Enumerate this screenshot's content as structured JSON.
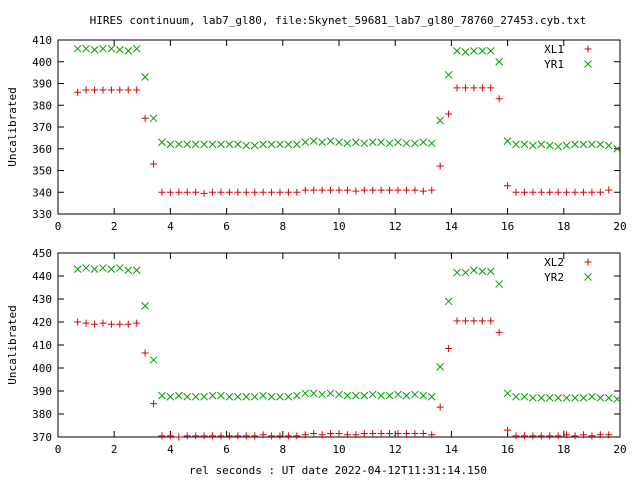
{
  "title": "HIRES continuum, lab7_gl80, file:Skynet_59681_lab7_gl80_78760_27453.cyb.txt",
  "xlabel": "rel seconds : UT date 2022-04-12T11:31:14.150",
  "colors": {
    "red": "#e00000",
    "green": "#00a000",
    "axis": "#000000"
  },
  "chart_data": [
    {
      "type": "scatter",
      "title": "",
      "xlabel": "",
      "ylabel": "Uncalibrated",
      "xlim": [
        0,
        20
      ],
      "ylim": [
        330,
        410
      ],
      "xticks": [
        0,
        2,
        4,
        6,
        8,
        10,
        12,
        14,
        16,
        18,
        20
      ],
      "yticks": [
        330,
        340,
        350,
        360,
        370,
        380,
        390,
        400,
        410
      ],
      "legend_position": "top-right",
      "grid": false,
      "series": [
        {
          "name": "XL1",
          "marker": "plus",
          "color": "#e00000",
          "points": [
            [
              0.7,
              386
            ],
            [
              1.0,
              387
            ],
            [
              1.3,
              387
            ],
            [
              1.6,
              387
            ],
            [
              1.9,
              387
            ],
            [
              2.2,
              387
            ],
            [
              2.5,
              387
            ],
            [
              2.8,
              387
            ],
            [
              3.1,
              374
            ],
            [
              3.4,
              353
            ],
            [
              3.7,
              340
            ],
            [
              4.0,
              340
            ],
            [
              4.3,
              340
            ],
            [
              4.6,
              340
            ],
            [
              4.9,
              340
            ],
            [
              5.2,
              339.5
            ],
            [
              5.5,
              340
            ],
            [
              5.8,
              340
            ],
            [
              6.1,
              340
            ],
            [
              6.4,
              340
            ],
            [
              6.7,
              340
            ],
            [
              7.0,
              340
            ],
            [
              7.3,
              340
            ],
            [
              7.6,
              340
            ],
            [
              7.9,
              340
            ],
            [
              8.2,
              340
            ],
            [
              8.5,
              340
            ],
            [
              8.8,
              341
            ],
            [
              9.1,
              341
            ],
            [
              9.4,
              341
            ],
            [
              9.7,
              341
            ],
            [
              10.0,
              341
            ],
            [
              10.3,
              341
            ],
            [
              10.6,
              340.5
            ],
            [
              10.9,
              341
            ],
            [
              11.2,
              341
            ],
            [
              11.5,
              341
            ],
            [
              11.8,
              341
            ],
            [
              12.1,
              341
            ],
            [
              12.4,
              341
            ],
            [
              12.7,
              341
            ],
            [
              13.0,
              340.5
            ],
            [
              13.3,
              341
            ],
            [
              13.6,
              352
            ],
            [
              13.9,
              376
            ],
            [
              14.2,
              388
            ],
            [
              14.5,
              388
            ],
            [
              14.8,
              388
            ],
            [
              15.1,
              388
            ],
            [
              15.4,
              388
            ],
            [
              15.7,
              383
            ],
            [
              16.0,
              343
            ],
            [
              16.3,
              340
            ],
            [
              16.6,
              340
            ],
            [
              16.9,
              340
            ],
            [
              17.2,
              340
            ],
            [
              17.5,
              340
            ],
            [
              17.8,
              340
            ],
            [
              18.1,
              340
            ],
            [
              18.4,
              340
            ],
            [
              18.7,
              340
            ],
            [
              19.0,
              340
            ],
            [
              19.3,
              340
            ],
            [
              19.6,
              341
            ]
          ]
        },
        {
          "name": "YR1",
          "marker": "cross",
          "color": "#00a000",
          "points": [
            [
              0.7,
              406
            ],
            [
              1.0,
              406
            ],
            [
              1.3,
              405.5
            ],
            [
              1.6,
              406
            ],
            [
              1.9,
              406
            ],
            [
              2.2,
              405.5
            ],
            [
              2.5,
              405
            ],
            [
              2.8,
              406
            ],
            [
              3.1,
              393
            ],
            [
              3.4,
              374
            ],
            [
              3.7,
              363
            ],
            [
              4.0,
              362
            ],
            [
              4.3,
              362
            ],
            [
              4.6,
              362
            ],
            [
              4.9,
              362
            ],
            [
              5.2,
              362
            ],
            [
              5.5,
              362
            ],
            [
              5.8,
              362
            ],
            [
              6.1,
              362
            ],
            [
              6.4,
              362
            ],
            [
              6.7,
              361.5
            ],
            [
              7.0,
              361.5
            ],
            [
              7.3,
              362
            ],
            [
              7.6,
              362
            ],
            [
              7.9,
              362
            ],
            [
              8.2,
              362
            ],
            [
              8.5,
              362
            ],
            [
              8.8,
              363
            ],
            [
              9.1,
              363.5
            ],
            [
              9.4,
              363
            ],
            [
              9.7,
              363.5
            ],
            [
              10.0,
              363
            ],
            [
              10.3,
              362.5
            ],
            [
              10.6,
              363
            ],
            [
              10.9,
              362.5
            ],
            [
              11.2,
              363
            ],
            [
              11.5,
              363
            ],
            [
              11.8,
              362.5
            ],
            [
              12.1,
              363
            ],
            [
              12.4,
              362.5
            ],
            [
              12.7,
              362.5
            ],
            [
              13.0,
              363
            ],
            [
              13.3,
              362.5
            ],
            [
              13.6,
              373
            ],
            [
              13.9,
              394
            ],
            [
              14.2,
              405
            ],
            [
              14.5,
              404.5
            ],
            [
              14.8,
              405
            ],
            [
              15.1,
              405
            ],
            [
              15.4,
              405
            ],
            [
              15.7,
              400
            ],
            [
              16.0,
              363.5
            ],
            [
              16.3,
              362
            ],
            [
              16.6,
              362
            ],
            [
              16.9,
              361.5
            ],
            [
              17.2,
              362
            ],
            [
              17.5,
              361.5
            ],
            [
              17.8,
              361
            ],
            [
              18.1,
              361.5
            ],
            [
              18.4,
              362
            ],
            [
              18.7,
              362
            ],
            [
              19.0,
              362
            ],
            [
              19.3,
              362
            ],
            [
              19.6,
              361.5
            ],
            [
              19.9,
              360
            ]
          ]
        }
      ]
    },
    {
      "type": "scatter",
      "title": "",
      "xlabel": "rel seconds : UT date 2022-04-12T11:31:14.150",
      "ylabel": "Uncalibrated",
      "xlim": [
        0,
        20
      ],
      "ylim": [
        370,
        450
      ],
      "xticks": [
        0,
        2,
        4,
        6,
        8,
        10,
        12,
        14,
        16,
        18,
        20
      ],
      "yticks": [
        370,
        380,
        390,
        400,
        410,
        420,
        430,
        440,
        450
      ],
      "legend_position": "top-right",
      "grid": false,
      "series": [
        {
          "name": "XL2",
          "marker": "plus",
          "color": "#e00000",
          "points": [
            [
              0.7,
              420
            ],
            [
              1.0,
              419.5
            ],
            [
              1.3,
              419
            ],
            [
              1.6,
              419.5
            ],
            [
              1.9,
              419
            ],
            [
              2.2,
              419
            ],
            [
              2.5,
              419
            ],
            [
              2.8,
              419.5
            ],
            [
              3.1,
              406.5
            ],
            [
              3.4,
              384.5
            ],
            [
              3.7,
              370.5
            ],
            [
              4.0,
              370.5
            ],
            [
              4.3,
              370
            ],
            [
              4.6,
              370.5
            ],
            [
              4.9,
              370.5
            ],
            [
              5.2,
              370.5
            ],
            [
              5.5,
              370.5
            ],
            [
              5.8,
              370.5
            ],
            [
              6.1,
              370.5
            ],
            [
              6.4,
              370.5
            ],
            [
              6.7,
              370.5
            ],
            [
              7.0,
              370.5
            ],
            [
              7.3,
              371
            ],
            [
              7.6,
              370.5
            ],
            [
              7.9,
              370.5
            ],
            [
              8.2,
              370.5
            ],
            [
              8.5,
              370.5
            ],
            [
              8.8,
              371
            ],
            [
              9.1,
              371.5
            ],
            [
              9.4,
              371
            ],
            [
              9.7,
              371.5
            ],
            [
              10.0,
              371.5
            ],
            [
              10.3,
              371
            ],
            [
              10.6,
              371
            ],
            [
              10.9,
              371.5
            ],
            [
              11.2,
              371.5
            ],
            [
              11.5,
              371.5
            ],
            [
              11.8,
              371.5
            ],
            [
              12.1,
              371.5
            ],
            [
              12.4,
              371.5
            ],
            [
              12.7,
              371.5
            ],
            [
              13.0,
              371.5
            ],
            [
              13.3,
              371
            ],
            [
              13.6,
              383
            ],
            [
              13.9,
              408.5
            ],
            [
              14.2,
              420.5
            ],
            [
              14.5,
              420.5
            ],
            [
              14.8,
              420.5
            ],
            [
              15.1,
              420.5
            ],
            [
              15.4,
              420.5
            ],
            [
              15.7,
              415.5
            ],
            [
              16.0,
              373
            ],
            [
              16.3,
              370.5
            ],
            [
              16.6,
              370.5
            ],
            [
              16.9,
              370.5
            ],
            [
              17.2,
              370.5
            ],
            [
              17.5,
              370.5
            ],
            [
              17.8,
              370.5
            ],
            [
              18.1,
              371
            ],
            [
              18.4,
              370.5
            ],
            [
              18.7,
              371
            ],
            [
              19.0,
              370.5
            ],
            [
              19.3,
              371
            ],
            [
              19.6,
              371
            ]
          ]
        },
        {
          "name": "YR2",
          "marker": "cross",
          "color": "#00a000",
          "points": [
            [
              0.7,
              443
            ],
            [
              1.0,
              443.5
            ],
            [
              1.3,
              443
            ],
            [
              1.6,
              443.5
            ],
            [
              1.9,
              443
            ],
            [
              2.2,
              443.5
            ],
            [
              2.5,
              442.5
            ],
            [
              2.8,
              442.5
            ],
            [
              3.1,
              427
            ],
            [
              3.4,
              403.5
            ],
            [
              3.7,
              388
            ],
            [
              4.0,
              387.5
            ],
            [
              4.3,
              388
            ],
            [
              4.6,
              387.5
            ],
            [
              4.9,
              387.5
            ],
            [
              5.2,
              387.5
            ],
            [
              5.5,
              388
            ],
            [
              5.8,
              388
            ],
            [
              6.1,
              387.5
            ],
            [
              6.4,
              387.5
            ],
            [
              6.7,
              387.5
            ],
            [
              7.0,
              387.5
            ],
            [
              7.3,
              388
            ],
            [
              7.6,
              387.5
            ],
            [
              7.9,
              387.5
            ],
            [
              8.2,
              387.5
            ],
            [
              8.5,
              388
            ],
            [
              8.8,
              389
            ],
            [
              9.1,
              389
            ],
            [
              9.4,
              388.5
            ],
            [
              9.7,
              389
            ],
            [
              10.0,
              388.5
            ],
            [
              10.3,
              388
            ],
            [
              10.6,
              388
            ],
            [
              10.9,
              388
            ],
            [
              11.2,
              388.5
            ],
            [
              11.5,
              388
            ],
            [
              11.8,
              388
            ],
            [
              12.1,
              388.5
            ],
            [
              12.4,
              388
            ],
            [
              12.7,
              388.5
            ],
            [
              13.0,
              388
            ],
            [
              13.3,
              387.5
            ],
            [
              13.6,
              400.5
            ],
            [
              13.9,
              429
            ],
            [
              14.2,
              441.5
            ],
            [
              14.5,
              441.5
            ],
            [
              14.8,
              442.5
            ],
            [
              15.1,
              442
            ],
            [
              15.4,
              442
            ],
            [
              15.7,
              436.5
            ],
            [
              16.0,
              389
            ],
            [
              16.3,
              387.5
            ],
            [
              16.6,
              387.5
            ],
            [
              16.9,
              387
            ],
            [
              17.2,
              387
            ],
            [
              17.5,
              387
            ],
            [
              17.8,
              387
            ],
            [
              18.1,
              387
            ],
            [
              18.4,
              387
            ],
            [
              18.7,
              387
            ],
            [
              19.0,
              387.5
            ],
            [
              19.3,
              387
            ],
            [
              19.6,
              387
            ],
            [
              19.9,
              386.5
            ]
          ]
        }
      ]
    }
  ]
}
